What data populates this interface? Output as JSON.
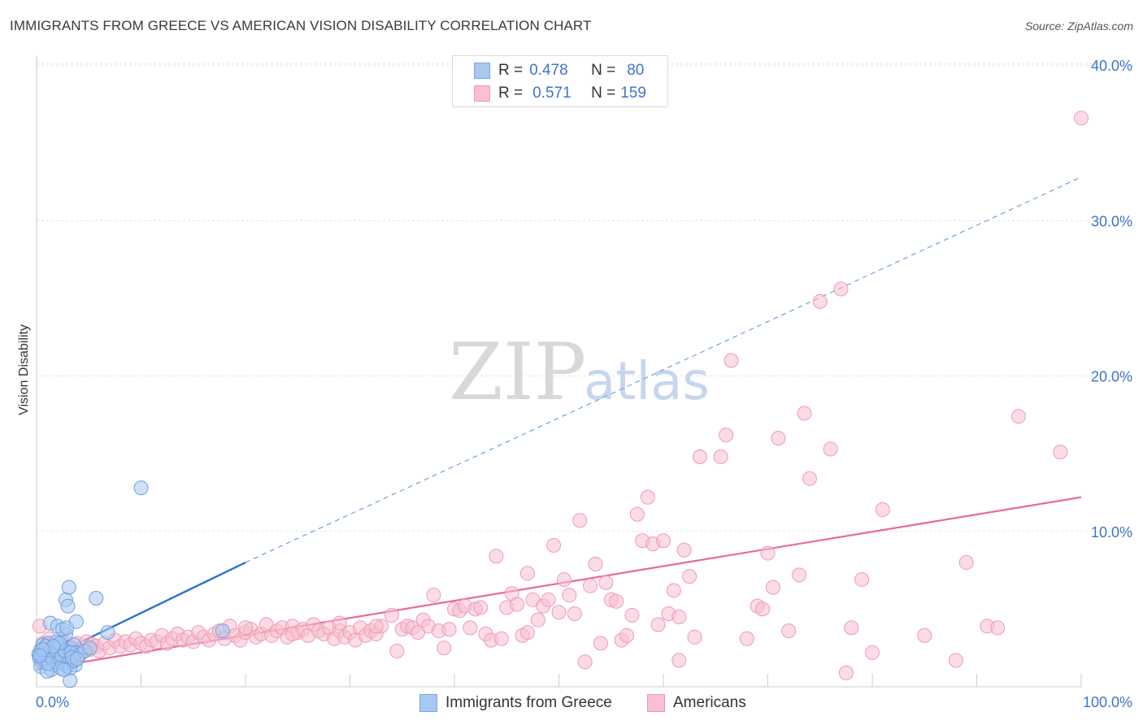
{
  "title": "IMMIGRANTS FROM GREECE VS AMERICAN VISION DISABILITY CORRELATION CHART",
  "source": "Source: ZipAtlas.com",
  "watermark": {
    "zip": "ZIP",
    "atlas": "atlas"
  },
  "legend": {
    "rows": [
      {
        "r_label": "R =",
        "r_value": "0.478",
        "n_label": "N =",
        "n_value": "80",
        "color": "#a8c8f0",
        "border": "#7aa6e0"
      },
      {
        "r_label": "R =",
        "r_value": "0.571",
        "n_label": "N =",
        "n_value": "159",
        "color": "#f8c0d0",
        "border": "#ee9ab2"
      }
    ]
  },
  "bottom_legend": [
    {
      "label": "Immigrants from Greece",
      "color": "#a8c8f0",
      "border": "#7aa6e0"
    },
    {
      "label": "Americans",
      "color": "#f8c0d0",
      "border": "#ee9ab2"
    }
  ],
  "chart_data": {
    "type": "scatter",
    "title": "IMMIGRANTS FROM GREECE VS AMERICAN VISION DISABILITY CORRELATION CHART",
    "xlabel": "",
    "ylabel": "Vision Disability",
    "xlim": [
      0,
      100
    ],
    "ylim": [
      0,
      42
    ],
    "x_tick_labels": [
      "0.0%",
      "100.0%"
    ],
    "y_ticks": [
      10,
      20,
      30,
      40
    ],
    "y_tick_labels": [
      "10.0%",
      "20.0%",
      "30.0%",
      "40.0%"
    ],
    "grid": true,
    "legend_position": "top-center",
    "series": [
      {
        "name": "Immigrants from Greece",
        "color": "#a8c8f0",
        "edge": "#6e9fe0",
        "trend_color": "#2f72d1",
        "trend": {
          "x0": 0,
          "y0": 1.5,
          "x1": 20,
          "y1": 8.0,
          "dash_to_x": 100,
          "dash_to_y": 32.8
        },
        "points": [
          [
            0.2,
            2.1
          ],
          [
            0.3,
            1.8
          ],
          [
            0.4,
            2.4
          ],
          [
            0.5,
            1.6
          ],
          [
            0.6,
            2.7
          ],
          [
            0.7,
            1.9
          ],
          [
            0.8,
            2.2
          ],
          [
            0.9,
            1.5
          ],
          [
            1.0,
            2.0
          ],
          [
            1.1,
            2.8
          ],
          [
            1.2,
            1.7
          ],
          [
            1.3,
            2.3
          ],
          [
            1.4,
            1.9
          ],
          [
            1.5,
            2.5
          ],
          [
            1.6,
            1.4
          ],
          [
            1.7,
            2.1
          ],
          [
            1.8,
            1.8
          ],
          [
            1.9,
            2.6
          ],
          [
            2.0,
            1.6
          ],
          [
            2.1,
            2.0
          ],
          [
            2.2,
            2.3
          ],
          [
            2.3,
            1.7
          ],
          [
            2.4,
            2.9
          ],
          [
            2.5,
            1.5
          ],
          [
            2.6,
            2.2
          ],
          [
            2.7,
            1.9
          ],
          [
            2.8,
            2.4
          ],
          [
            2.9,
            1.3
          ],
          [
            3.0,
            2.0
          ],
          [
            3.1,
            1.8
          ],
          [
            3.2,
            2.5
          ],
          [
            3.3,
            1.6
          ],
          [
            3.4,
            2.1
          ],
          [
            3.5,
            1.9
          ],
          [
            3.6,
            2.7
          ],
          [
            3.7,
            1.4
          ],
          [
            3.8,
            2.2
          ],
          [
            0.5,
            2.0
          ],
          [
            0.8,
            1.7
          ],
          [
            1.2,
            2.2
          ],
          [
            1.5,
            1.9
          ],
          [
            1.8,
            2.4
          ],
          [
            2.1,
            1.6
          ],
          [
            2.4,
            2.0
          ],
          [
            2.7,
            2.3
          ],
          [
            3.0,
            1.5
          ],
          [
            3.3,
            2.2
          ],
          [
            0.4,
            1.3
          ],
          [
            0.9,
            2.6
          ],
          [
            1.4,
            1.1
          ],
          [
            1.9,
            2.9
          ],
          [
            2.3,
            1.2
          ],
          [
            2.8,
            3.4
          ],
          [
            3.2,
            1.2
          ],
          [
            3.6,
            1.7
          ],
          [
            1.3,
            4.1
          ],
          [
            2.0,
            3.9
          ],
          [
            2.5,
            3.7
          ],
          [
            2.9,
            3.8
          ],
          [
            3.8,
            4.2
          ],
          [
            2.8,
            5.6
          ],
          [
            3.0,
            5.2
          ],
          [
            3.1,
            6.4
          ],
          [
            5.7,
            5.7
          ],
          [
            6.8,
            3.5
          ],
          [
            10.0,
            12.8
          ],
          [
            2.2,
            2.8
          ],
          [
            1.6,
            2.6
          ],
          [
            3.4,
            1.9
          ],
          [
            4.2,
            2.1
          ],
          [
            4.6,
            2.3
          ],
          [
            5.1,
            2.5
          ],
          [
            17.8,
            3.6
          ],
          [
            3.2,
            0.4
          ],
          [
            1.0,
            1.0
          ],
          [
            0.6,
            2.4
          ],
          [
            1.1,
            1.5
          ],
          [
            2.6,
            1.1
          ],
          [
            3.9,
            1.8
          ],
          [
            0.3,
            2.0
          ]
        ]
      },
      {
        "name": "Americans",
        "color": "#f8c0d0",
        "edge": "#ee9ab2",
        "trend_color": "#e8699a",
        "trend": {
          "x0": 0,
          "y0": 1.1,
          "x1": 100,
          "y1": 12.2
        },
        "points": [
          [
            0.3,
            3.9
          ],
          [
            0.6,
            2.8
          ],
          [
            0.9,
            2.2
          ],
          [
            1.2,
            3.1
          ],
          [
            1.5,
            2.5
          ],
          [
            1.8,
            2.0
          ],
          [
            2.1,
            2.7
          ],
          [
            2.4,
            2.3
          ],
          [
            2.7,
            2.9
          ],
          [
            3.0,
            2.1
          ],
          [
            3.3,
            2.6
          ],
          [
            3.6,
            2.4
          ],
          [
            3.9,
            2.8
          ],
          [
            4.2,
            2.2
          ],
          [
            4.5,
            2.5
          ],
          [
            4.8,
            2.9
          ],
          [
            5.1,
            2.4
          ],
          [
            5.4,
            2.7
          ],
          [
            5.7,
            2.6
          ],
          [
            6.0,
            2.3
          ],
          [
            6.5,
            2.8
          ],
          [
            7.0,
            2.5
          ],
          [
            7.5,
            3.0
          ],
          [
            8.0,
            2.6
          ],
          [
            8.5,
            2.9
          ],
          [
            9.0,
            2.7
          ],
          [
            9.5,
            3.1
          ],
          [
            10.0,
            2.8
          ],
          [
            10.5,
            2.6
          ],
          [
            11.0,
            3.0
          ],
          [
            11.5,
            2.9
          ],
          [
            12.0,
            3.3
          ],
          [
            12.5,
            2.8
          ],
          [
            13.0,
            3.1
          ],
          [
            13.5,
            3.4
          ],
          [
            14.0,
            3.0
          ],
          [
            14.5,
            3.2
          ],
          [
            15.0,
            2.9
          ],
          [
            15.5,
            3.5
          ],
          [
            16.0,
            3.2
          ],
          [
            16.5,
            3.0
          ],
          [
            17.0,
            3.4
          ],
          [
            17.5,
            3.6
          ],
          [
            18.0,
            3.1
          ],
          [
            18.5,
            3.9
          ],
          [
            19.0,
            3.3
          ],
          [
            19.5,
            3.0
          ],
          [
            20.0,
            3.5
          ],
          [
            20.5,
            3.7
          ],
          [
            21.0,
            3.2
          ],
          [
            21.5,
            3.4
          ],
          [
            22.0,
            4.0
          ],
          [
            22.5,
            3.3
          ],
          [
            23.0,
            3.6
          ],
          [
            23.5,
            3.8
          ],
          [
            24.0,
            3.2
          ],
          [
            24.5,
            3.9
          ],
          [
            25.0,
            3.5
          ],
          [
            25.5,
            3.7
          ],
          [
            26.0,
            3.3
          ],
          [
            26.5,
            4.0
          ],
          [
            27.0,
            3.6
          ],
          [
            27.5,
            3.4
          ],
          [
            28.0,
            3.8
          ],
          [
            28.5,
            3.1
          ],
          [
            29.0,
            3.6
          ],
          [
            29.5,
            3.2
          ],
          [
            30.0,
            3.5
          ],
          [
            30.5,
            3.0
          ],
          [
            31.0,
            3.8
          ],
          [
            31.5,
            3.3
          ],
          [
            32.0,
            3.6
          ],
          [
            32.5,
            3.4
          ],
          [
            33.0,
            3.9
          ],
          [
            34.0,
            4.6
          ],
          [
            34.5,
            2.3
          ],
          [
            35.0,
            3.7
          ],
          [
            35.5,
            3.9
          ],
          [
            36.0,
            3.8
          ],
          [
            36.5,
            3.5
          ],
          [
            37.0,
            4.3
          ],
          [
            37.5,
            3.9
          ],
          [
            38.0,
            5.9
          ],
          [
            38.5,
            3.6
          ],
          [
            39.0,
            2.5
          ],
          [
            39.5,
            3.7
          ],
          [
            40.0,
            5.0
          ],
          [
            40.5,
            4.9
          ],
          [
            41.0,
            5.2
          ],
          [
            41.5,
            3.8
          ],
          [
            42.0,
            5.0
          ],
          [
            42.5,
            5.1
          ],
          [
            43.0,
            3.4
          ],
          [
            43.5,
            3.0
          ],
          [
            44.0,
            8.4
          ],
          [
            44.5,
            3.1
          ],
          [
            45.0,
            5.1
          ],
          [
            45.5,
            6.0
          ],
          [
            46.0,
            5.3
          ],
          [
            46.5,
            3.3
          ],
          [
            47.0,
            7.3
          ],
          [
            47.5,
            5.6
          ],
          [
            48.0,
            4.3
          ],
          [
            48.5,
            5.2
          ],
          [
            49.0,
            5.6
          ],
          [
            49.5,
            9.1
          ],
          [
            50.0,
            4.8
          ],
          [
            50.5,
            6.9
          ],
          [
            51.0,
            5.9
          ],
          [
            51.5,
            4.7
          ],
          [
            52.0,
            10.7
          ],
          [
            52.5,
            1.6
          ],
          [
            53.0,
            6.5
          ],
          [
            53.5,
            7.9
          ],
          [
            54.0,
            2.8
          ],
          [
            54.5,
            6.7
          ],
          [
            55.0,
            5.6
          ],
          [
            55.5,
            5.5
          ],
          [
            56.0,
            3.0
          ],
          [
            56.5,
            3.3
          ],
          [
            57.0,
            4.6
          ],
          [
            57.5,
            11.1
          ],
          [
            58.0,
            9.4
          ],
          [
            58.5,
            12.2
          ],
          [
            59.0,
            9.2
          ],
          [
            59.5,
            4.0
          ],
          [
            60.0,
            9.4
          ],
          [
            60.5,
            4.7
          ],
          [
            61.0,
            6.2
          ],
          [
            61.5,
            1.7
          ],
          [
            62.0,
            8.8
          ],
          [
            62.5,
            7.1
          ],
          [
            63.0,
            3.2
          ],
          [
            63.5,
            14.8
          ],
          [
            65.5,
            14.8
          ],
          [
            66.0,
            16.2
          ],
          [
            66.5,
            21.0
          ],
          [
            68.0,
            3.1
          ],
          [
            69.0,
            5.2
          ],
          [
            69.5,
            5.0
          ],
          [
            70.0,
            8.6
          ],
          [
            70.5,
            6.4
          ],
          [
            71.0,
            16.0
          ],
          [
            72.0,
            3.6
          ],
          [
            73.0,
            7.2
          ],
          [
            73.5,
            17.6
          ],
          [
            74.0,
            13.4
          ],
          [
            75.0,
            24.8
          ],
          [
            76.0,
            15.3
          ],
          [
            77.0,
            25.6
          ],
          [
            77.5,
            0.9
          ],
          [
            78.0,
            3.8
          ],
          [
            79.0,
            6.9
          ],
          [
            80.0,
            2.2
          ],
          [
            81.0,
            11.4
          ],
          [
            85.0,
            3.3
          ],
          [
            88.0,
            1.7
          ],
          [
            89.0,
            8.0
          ],
          [
            91.0,
            3.9
          ],
          [
            92.0,
            3.8
          ],
          [
            94.0,
            17.4
          ],
          [
            98.0,
            15.1
          ],
          [
            100.0,
            36.6
          ],
          [
            20.0,
            3.8
          ],
          [
            24.5,
            3.4
          ],
          [
            29.0,
            4.1
          ],
          [
            32.5,
            3.9
          ],
          [
            47.0,
            3.5
          ],
          [
            61.5,
            4.5
          ]
        ]
      }
    ]
  }
}
